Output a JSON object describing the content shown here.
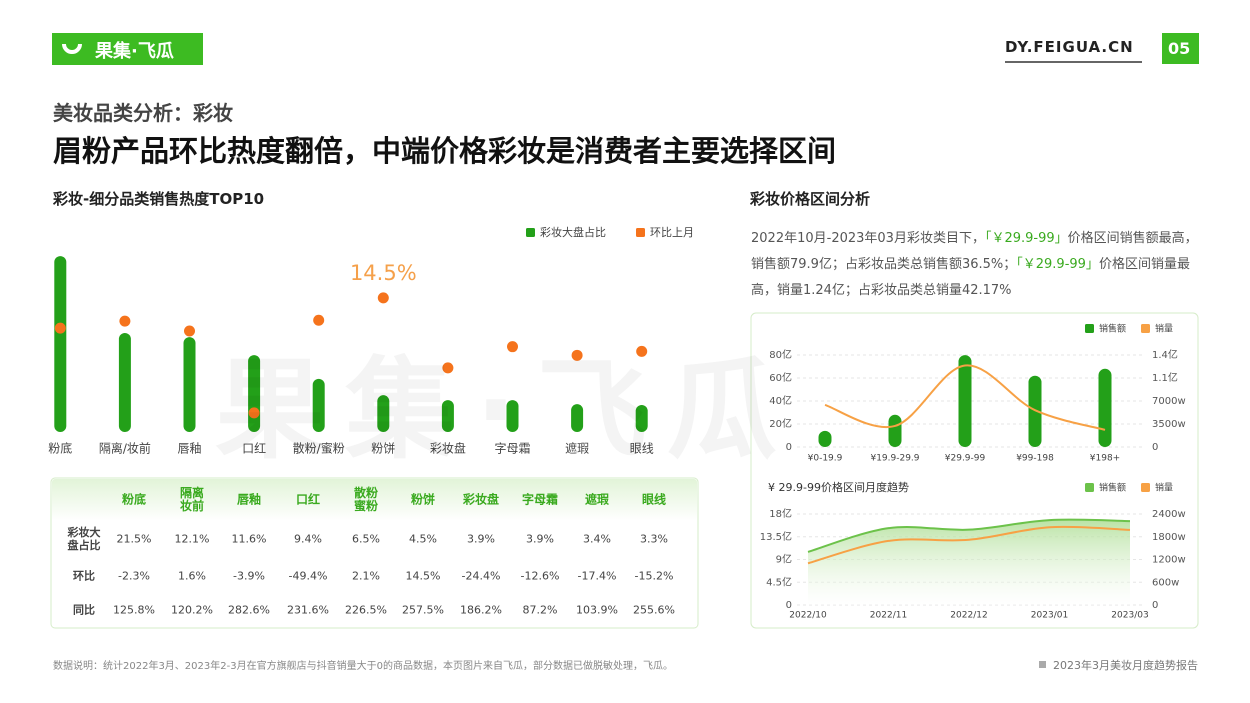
{
  "header": {
    "logo": "果集·飞瓜",
    "site": "DY.FEIGUA.CN",
    "page": "05",
    "section": "美妆品类分析：彩妆",
    "headline": "眉粉产品环比热度翻倍，中端价格彩妆是消费者主要选择区间"
  },
  "watermark": "果集·飞瓜",
  "left": {
    "title": "彩妆-细分品类销售热度TOP10"
  },
  "right": {
    "title": "彩妆价格区间分析",
    "description": [
      {
        "text": "2022年10月-2023年03月彩妆类目下，",
        "highlight": false
      },
      {
        "text": "「￥29.9-99」",
        "highlight": true
      },
      {
        "text": "价格区间销售额最高，销售额79.9亿；占彩妆品类总销售额36.5%；",
        "highlight": false
      },
      {
        "text": "「￥29.9-99」",
        "highlight": true
      },
      {
        "text": "价格区间销量最高，销量1.24亿；占彩妆品类总销量42.17%",
        "highlight": false
      }
    ]
  },
  "chart_data": [
    {
      "type": "bar",
      "categories": [
        "粉底",
        "隔离/妆前",
        "唇釉",
        "口红",
        "散粉/蜜粉",
        "粉饼",
        "彩妆盘",
        "字母霜",
        "遮瑕",
        "眼线"
      ],
      "series": [
        {
          "name": "彩妆大盘占比",
          "color": "#23a019",
          "values": [
            21.5,
            12.1,
            11.6,
            9.4,
            6.5,
            4.5,
            3.9,
            3.9,
            3.4,
            3.3
          ]
        },
        {
          "name": "环比上月",
          "color": "#f5731c",
          "axis": "y2",
          "type": "scatter",
          "values": [
            -2.3,
            1.6,
            -3.9,
            -49.4,
            2.1,
            14.5,
            -24.4,
            -12.6,
            -17.4,
            -15.2
          ],
          "value_labels": [
            null,
            null,
            null,
            null,
            null,
            "14.5%",
            null,
            null,
            null,
            null
          ]
        }
      ],
      "ylim": [
        0,
        22
      ],
      "y2lim": [
        -60,
        40
      ],
      "legend": "top-right"
    },
    {
      "type": "bar",
      "categories": [
        "¥0-19.9",
        "¥19.9-29.9",
        "¥29.9-99",
        "¥99-198",
        "¥198+"
      ],
      "series": [
        {
          "name": "销售额",
          "color": "#23a019",
          "values": [
            14,
            28,
            79.9,
            62,
            68
          ]
        },
        {
          "name": "销量",
          "color": "#f7a145",
          "axis": "y2",
          "type": "line",
          "values": [
            6400,
            3200,
            12400,
            5600,
            2600
          ]
        }
      ],
      "ylim": [
        0,
        80
      ],
      "yticks": [
        0,
        {
          "value": 20,
          "label": "20亿"
        },
        {
          "value": 40,
          "label": "40亿"
        },
        {
          "value": 60,
          "label": "60亿"
        },
        {
          "value": 80,
          "label": "80亿"
        }
      ],
      "y2lim": [
        0,
        14000
      ],
      "y2ticks": [
        0,
        {
          "value": 3500,
          "label": "3500w"
        },
        {
          "value": 7000,
          "label": "7000w"
        },
        {
          "value": 10500,
          "label": "1.1亿"
        },
        {
          "value": 14000,
          "label": "1.4亿"
        }
      ],
      "grid": true,
      "legend": "top-right"
    },
    {
      "type": "area",
      "title": "¥ 29.9-99价格区间月度趋势",
      "categories": [
        "2022/10",
        "2022/11",
        "2022/12",
        "2023/01",
        "2023/03"
      ],
      "series": [
        {
          "name": "销售额",
          "color": "#6cc24a",
          "values": [
            10.5,
            15.2,
            14.9,
            16.8,
            16.6
          ]
        },
        {
          "name": "销量",
          "color": "#f7a145",
          "axis": "y2",
          "type": "line",
          "values": [
            1100,
            1690,
            1720,
            2050,
            1980
          ]
        }
      ],
      "ylim": [
        0,
        18
      ],
      "yticks": [
        0,
        {
          "value": 4.5,
          "label": "4.5亿"
        },
        {
          "value": 9,
          "label": "9亿"
        },
        {
          "value": 13.5,
          "label": "13.5亿"
        },
        {
          "value": 18,
          "label": "18亿"
        }
      ],
      "y2lim": [
        0,
        2400
      ],
      "y2ticks": [
        0,
        {
          "value": 600,
          "label": "600w"
        },
        {
          "value": 1200,
          "label": "1200w"
        },
        {
          "value": 1800,
          "label": "1800w"
        },
        {
          "value": 2400,
          "label": "2400w"
        }
      ],
      "grid": true,
      "legend": "top-right"
    }
  ],
  "table": {
    "columns": [
      "粉底",
      "隔离\n妆前",
      "唇釉",
      "口红",
      "散粉\n蜜粉",
      "粉饼",
      "彩妆盘",
      "字母霜",
      "遮瑕",
      "眼线"
    ],
    "rows": [
      {
        "label": "彩妆大\n盘占比",
        "cells": [
          "21.5%",
          "12.1%",
          "11.6%",
          "9.4%",
          "6.5%",
          "4.5%",
          "3.9%",
          "3.9%",
          "3.4%",
          "3.3%"
        ]
      },
      {
        "label": "环比",
        "cells": [
          "-2.3%",
          "1.6%",
          "-3.9%",
          "-49.4%",
          "2.1%",
          "14.5%",
          "-24.4%",
          "-12.6%",
          "-17.4%",
          "-15.2%"
        ]
      },
      {
        "label": "同比",
        "cells": [
          "125.8%",
          "120.2%",
          "282.6%",
          "231.6%",
          "226.5%",
          "257.5%",
          "186.2%",
          "87.2%",
          "103.9%",
          "255.6%"
        ]
      }
    ]
  },
  "footer": {
    "note": "数据说明：统计2022年3月、2023年2-3月在官方旗舰店与抖音销量大于0的商品数据，本页图片来自飞瓜，部分数据已做脱敏处理，飞瓜。",
    "report": "2023年3月美妆月度趋势报告"
  }
}
